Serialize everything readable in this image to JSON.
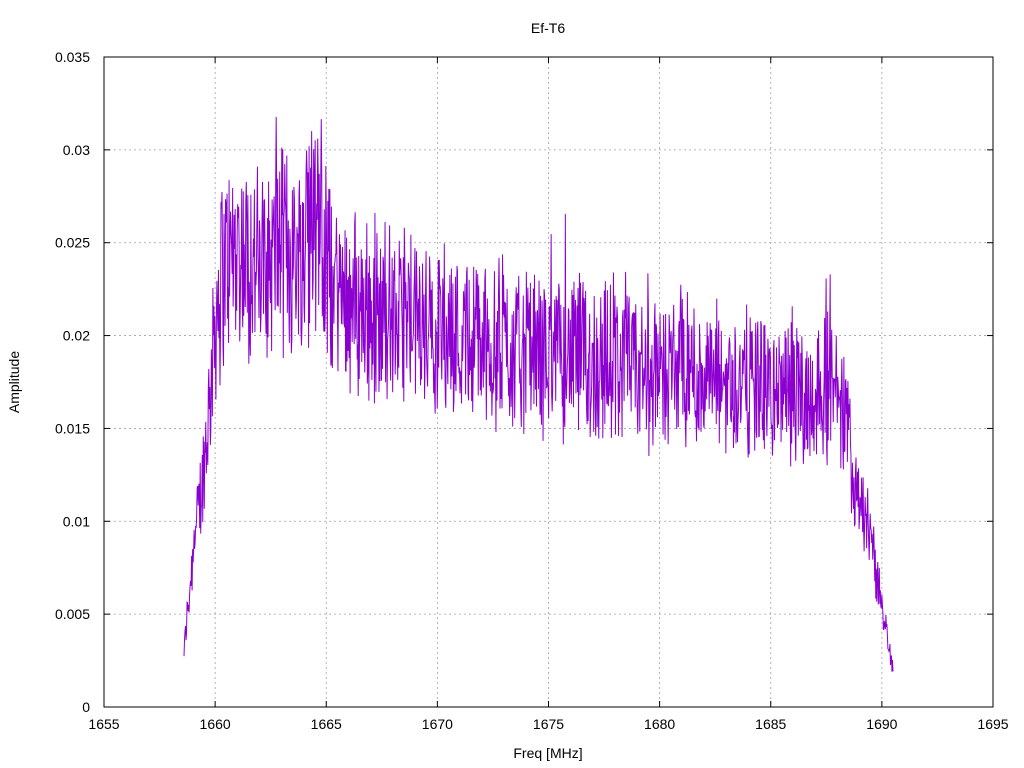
{
  "chart_data": {
    "type": "line",
    "title": "Ef-T6",
    "xlabel": "Freq [MHz]",
    "ylabel": "Amplitude",
    "xlim": [
      1655,
      1695
    ],
    "ylim": [
      0,
      0.035
    ],
    "xticks": [
      1655,
      1660,
      1665,
      1670,
      1675,
      1680,
      1685,
      1690,
      1695
    ],
    "xtick_labels": [
      "1655",
      "1660",
      "1665",
      "1670",
      "1675",
      "1680",
      "1685",
      "1690",
      "1695"
    ],
    "yticks": [
      0,
      0.005,
      0.01,
      0.015,
      0.02,
      0.025,
      0.03,
      0.035
    ],
    "ytick_labels": [
      "0",
      "0.005",
      "0.01",
      "0.015",
      "0.02",
      "0.025",
      "0.03",
      "0.035"
    ],
    "grid": true,
    "color": "#8b00d0",
    "series": [
      {
        "envelope_x": [
          1658.6,
          1658.9,
          1659.2,
          1659.5,
          1659.8,
          1660.0,
          1660.3,
          1660.6,
          1661.0,
          1661.5,
          1662.0,
          1662.5,
          1663.0,
          1663.5,
          1664.0,
          1664.5,
          1665.0,
          1665.5,
          1666.0,
          1666.5,
          1667.0,
          1668.0,
          1669.0,
          1670.0,
          1671.0,
          1672.0,
          1673.0,
          1674.0,
          1675.0,
          1676.0,
          1677.0,
          1678.0,
          1679.0,
          1680.0,
          1681.0,
          1682.0,
          1683.0,
          1684.0,
          1685.0,
          1686.0,
          1687.0,
          1687.6,
          1688.0,
          1688.4,
          1688.7,
          1689.0,
          1689.3,
          1689.6,
          1689.9,
          1690.2,
          1690.5
        ],
        "envelope_y": [
          0.003,
          0.007,
          0.01,
          0.013,
          0.017,
          0.021,
          0.0235,
          0.024,
          0.0245,
          0.024,
          0.0235,
          0.024,
          0.025,
          0.0245,
          0.024,
          0.025,
          0.0235,
          0.0225,
          0.022,
          0.0215,
          0.021,
          0.021,
          0.0205,
          0.0205,
          0.02,
          0.0195,
          0.0195,
          0.019,
          0.019,
          0.019,
          0.0185,
          0.0185,
          0.018,
          0.018,
          0.018,
          0.0178,
          0.0175,
          0.0175,
          0.017,
          0.0168,
          0.0168,
          0.017,
          0.0165,
          0.015,
          0.013,
          0.0115,
          0.01,
          0.008,
          0.006,
          0.004,
          0.002
        ]
      }
    ]
  }
}
